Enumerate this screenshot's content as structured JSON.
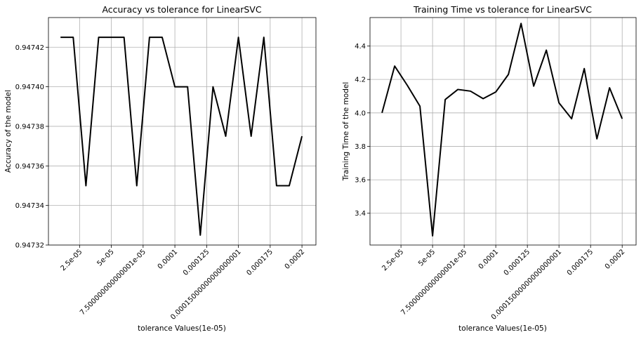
{
  "chart_data": [
    {
      "type": "line",
      "title": "Accuracy vs tolerance for LinearSVC",
      "xlabel": "tolerance Values(1e-05)",
      "ylabel": "Accuracy of the model",
      "xlim": [
        5e-07,
        0.000211
      ],
      "ylim": [
        0.94732,
        0.947435
      ],
      "grid": true,
      "color": "#000000",
      "x_ticks": [
        {
          "value": 2.5e-05,
          "label": "2.5e-05"
        },
        {
          "value": 5e-05,
          "label": "5e-05"
        },
        {
          "value": 7.5e-05,
          "label": "7.500000000000001e-05"
        },
        {
          "value": 0.0001,
          "label": "0.0001"
        },
        {
          "value": 0.000125,
          "label": "0.000125"
        },
        {
          "value": 0.00015,
          "label": "0.00015000000000000001"
        },
        {
          "value": 0.000175,
          "label": "0.000175"
        },
        {
          "value": 0.0002,
          "label": "0.0002"
        }
      ],
      "y_ticks": [
        {
          "value": 0.94732,
          "label": "0.94732"
        },
        {
          "value": 0.94734,
          "label": "0.94734"
        },
        {
          "value": 0.94736,
          "label": "0.94736"
        },
        {
          "value": 0.94738,
          "label": "0.94738"
        },
        {
          "value": 0.9474,
          "label": "0.94740"
        },
        {
          "value": 0.94742,
          "label": "0.94742"
        }
      ],
      "x": [
        1e-05,
        2e-05,
        3e-05,
        4e-05,
        5e-05,
        6e-05,
        7e-05,
        8e-05,
        9e-05,
        0.0001,
        0.00011,
        0.00012,
        0.00013,
        0.00014,
        0.00015,
        0.00016,
        0.00017,
        0.00018,
        0.00019,
        0.0002
      ],
      "y": [
        0.947425,
        0.947425,
        0.94735,
        0.947425,
        0.947425,
        0.947425,
        0.94735,
        0.947425,
        0.947425,
        0.9474,
        0.9474,
        0.947325,
        0.9474,
        0.947375,
        0.947425,
        0.947375,
        0.947425,
        0.94735,
        0.94735,
        0.947375
      ]
    },
    {
      "type": "line",
      "title": "Training Time vs tolerance for LinearSVC",
      "xlabel": "tolerance Values(1e-05)",
      "ylabel": "Training Time of the model",
      "xlim": [
        5e-07,
        0.000211
      ],
      "ylim": [
        3.21,
        4.57
      ],
      "grid": true,
      "color": "#000000",
      "x_ticks": [
        {
          "value": 2.5e-05,
          "label": "2.5e-05"
        },
        {
          "value": 5e-05,
          "label": "5e-05"
        },
        {
          "value": 7.5e-05,
          "label": "7.500000000000001e-05"
        },
        {
          "value": 0.0001,
          "label": "0.0001"
        },
        {
          "value": 0.000125,
          "label": "0.000125"
        },
        {
          "value": 0.00015,
          "label": "0.00015000000000000001"
        },
        {
          "value": 0.000175,
          "label": "0.000175"
        },
        {
          "value": 0.0002,
          "label": "0.0002"
        }
      ],
      "y_ticks": [
        {
          "value": 3.4,
          "label": "3.4"
        },
        {
          "value": 3.6,
          "label": "3.6"
        },
        {
          "value": 3.8,
          "label": "3.8"
        },
        {
          "value": 4.0,
          "label": "4.0"
        },
        {
          "value": 4.2,
          "label": "4.2"
        },
        {
          "value": 4.4,
          "label": "4.4"
        }
      ],
      "x": [
        1e-05,
        2e-05,
        3e-05,
        4e-05,
        5e-05,
        6e-05,
        7e-05,
        8e-05,
        9e-05,
        0.0001,
        0.00011,
        0.00012,
        0.00013,
        0.00014,
        0.00015,
        0.00016,
        0.00017,
        0.00018,
        0.00019,
        0.0002
      ],
      "y": [
        4.0,
        4.28,
        4.165,
        4.04,
        3.265,
        4.08,
        4.14,
        4.13,
        4.085,
        4.125,
        4.23,
        4.535,
        4.16,
        4.375,
        4.06,
        3.965,
        4.265,
        3.845,
        4.15,
        3.965
      ]
    }
  ]
}
